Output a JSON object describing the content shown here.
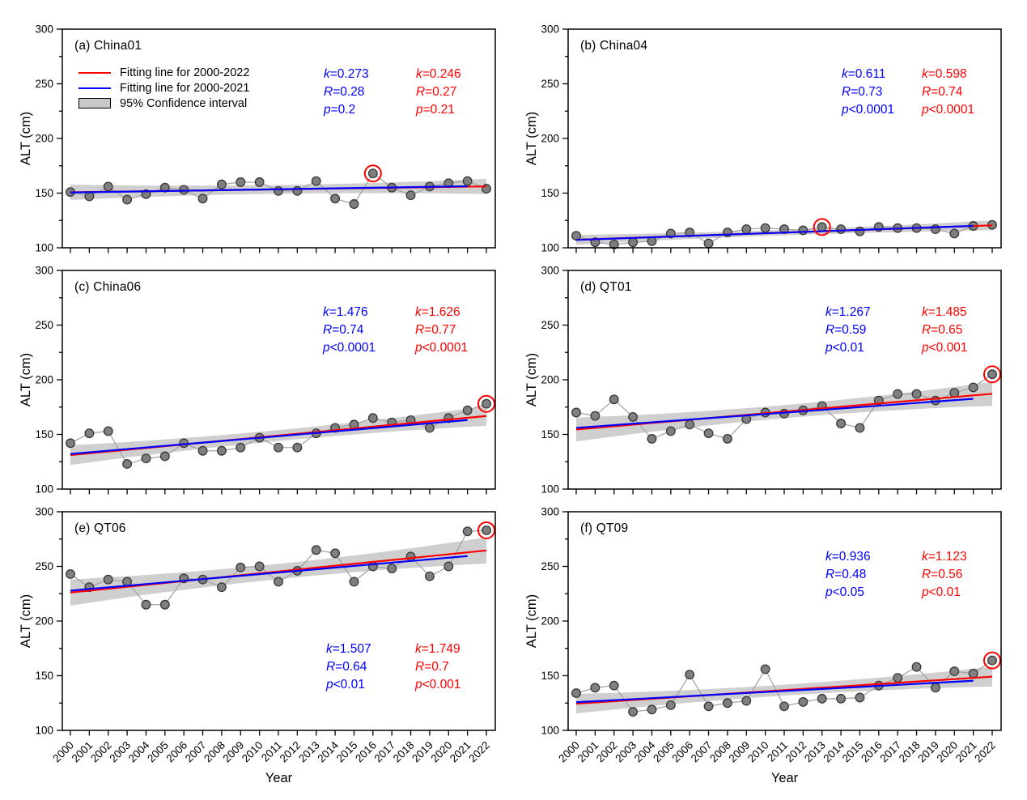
{
  "figure": {
    "y_axis_label": "ALT (cm)",
    "x_axis_label": "Year",
    "legend": {
      "items": [
        {
          "label": "Fitting line for 2000-2022",
          "type": "line",
          "color": "#FF0000"
        },
        {
          "label": "Fitting line for 2000-2021",
          "type": "line",
          "color": "#0000FF"
        },
        {
          "label": "95% Confidence interval",
          "type": "box",
          "color": "#C9C9C9"
        }
      ]
    },
    "colors": {
      "fit_2000_2022": "#FF0000",
      "fit_2000_2021": "#0000FF",
      "point_fill": "#7F7F7F",
      "point_edge": "#383838",
      "connector": "#A0A0A0",
      "ci_band": "#CACACA",
      "frame": "#000000",
      "outlier_ring": "#FF0000"
    }
  },
  "chart_data": {
    "type": "scatter",
    "xlabel": "Year",
    "ylabel": "ALT (cm)",
    "ylim": [
      100,
      300
    ],
    "y_major_ticks": [
      300,
      250,
      200,
      150,
      100
    ],
    "y_minor_step": 25,
    "x": [
      2000,
      2001,
      2002,
      2003,
      2004,
      2005,
      2006,
      2007,
      2008,
      2009,
      2010,
      2011,
      2012,
      2013,
      2014,
      2015,
      2016,
      2017,
      2018,
      2019,
      2020,
      2021,
      2022
    ],
    "panels": [
      {
        "id": "a",
        "title": "(a) China01",
        "site": "China01",
        "values": [
          151,
          147,
          156,
          144,
          149,
          155,
          153,
          145,
          158,
          160,
          160,
          152,
          152,
          161,
          145,
          140,
          168,
          155,
          148,
          156,
          159,
          161,
          154
        ],
        "circled_year": 2016,
        "fit_2000_2021": {
          "k": "k=0.273",
          "R": "R=0.28",
          "p": "p=0.2"
        },
        "fit_2000_2022": {
          "k": "k=0.246",
          "R": "R=0.27",
          "p": "p=0.21"
        },
        "ci_halfwidth": {
          "mid": 4,
          "end": 7
        }
      },
      {
        "id": "b",
        "title": "(b) China04",
        "site": "China04",
        "values": [
          111,
          105,
          103,
          105,
          106,
          113,
          114,
          104,
          114,
          117,
          118,
          117,
          116,
          119,
          117,
          115,
          119,
          118,
          118,
          117,
          113,
          120,
          121
        ],
        "circled_year": 2013,
        "fit_2000_2021": {
          "k": "k=0.611",
          "R": "R=0.73",
          "p": "p<0.0001"
        },
        "fit_2000_2022": {
          "k": "k=0.598",
          "R": "R=0.74",
          "p": "p<0.0001"
        },
        "ci_halfwidth": {
          "mid": 2.5,
          "end": 4.5
        }
      },
      {
        "id": "c",
        "title": "(c) China06",
        "site": "China06",
        "values": [
          142,
          151,
          153,
          123,
          128,
          130,
          142,
          135,
          135,
          138,
          147,
          138,
          138,
          151,
          156,
          159,
          165,
          161,
          163,
          156,
          165,
          172,
          178
        ],
        "circled_year": 2022,
        "fit_2000_2021": {
          "k": "k=1.476",
          "R": "R=0.74",
          "p": "p<0.0001"
        },
        "fit_2000_2022": {
          "k": "k=1.626",
          "R": "R=0.77",
          "p": "p<0.0001"
        },
        "ci_halfwidth": {
          "mid": 5,
          "end": 9
        }
      },
      {
        "id": "d",
        "title": "(d) QT01",
        "site": "QT01",
        "values": [
          170,
          167,
          182,
          166,
          146,
          153,
          159,
          151,
          146,
          164,
          170,
          169,
          172,
          176,
          160,
          156,
          181,
          187,
          187,
          181,
          188,
          193,
          205
        ],
        "circled_year": 2022,
        "fit_2000_2021": {
          "k": "k=1.267",
          "R": "R=0.59",
          "p": "p<0.01"
        },
        "fit_2000_2022": {
          "k": "k=1.485",
          "R": "R=0.65",
          "p": "p<0.001"
        },
        "ci_halfwidth": {
          "mid": 6,
          "end": 11
        }
      },
      {
        "id": "e",
        "title": "(e) QT06",
        "site": "QT06",
        "values": [
          243,
          231,
          238,
          236,
          215,
          215,
          239,
          238,
          231,
          249,
          250,
          236,
          246,
          265,
          262,
          236,
          250,
          248,
          259,
          241,
          250,
          282,
          283
        ],
        "circled_year": 2022,
        "fit_2000_2021": {
          "k": "k=1.507",
          "R": "R=0.64",
          "p": "p<0.01"
        },
        "fit_2000_2022": {
          "k": "k=1.749",
          "R": "R=0.7",
          "p": "p<0.001"
        },
        "ci_halfwidth": {
          "mid": 7,
          "end": 12
        }
      },
      {
        "id": "f",
        "title": "(f) QT09",
        "site": "QT09",
        "values": [
          134,
          139,
          141,
          117,
          119,
          123,
          151,
          122,
          125,
          127,
          156,
          122,
          126,
          129,
          129,
          130,
          141,
          148,
          158,
          139,
          154,
          152,
          164
        ],
        "circled_year": 2022,
        "fit_2000_2021": {
          "k": "k=0.936",
          "R": "R=0.48",
          "p": "p<0.05"
        },
        "fit_2000_2022": {
          "k": "k=1.123",
          "R": "R=0.56",
          "p": "p<0.01"
        },
        "ci_halfwidth": {
          "mid": 5,
          "end": 9
        }
      }
    ]
  }
}
